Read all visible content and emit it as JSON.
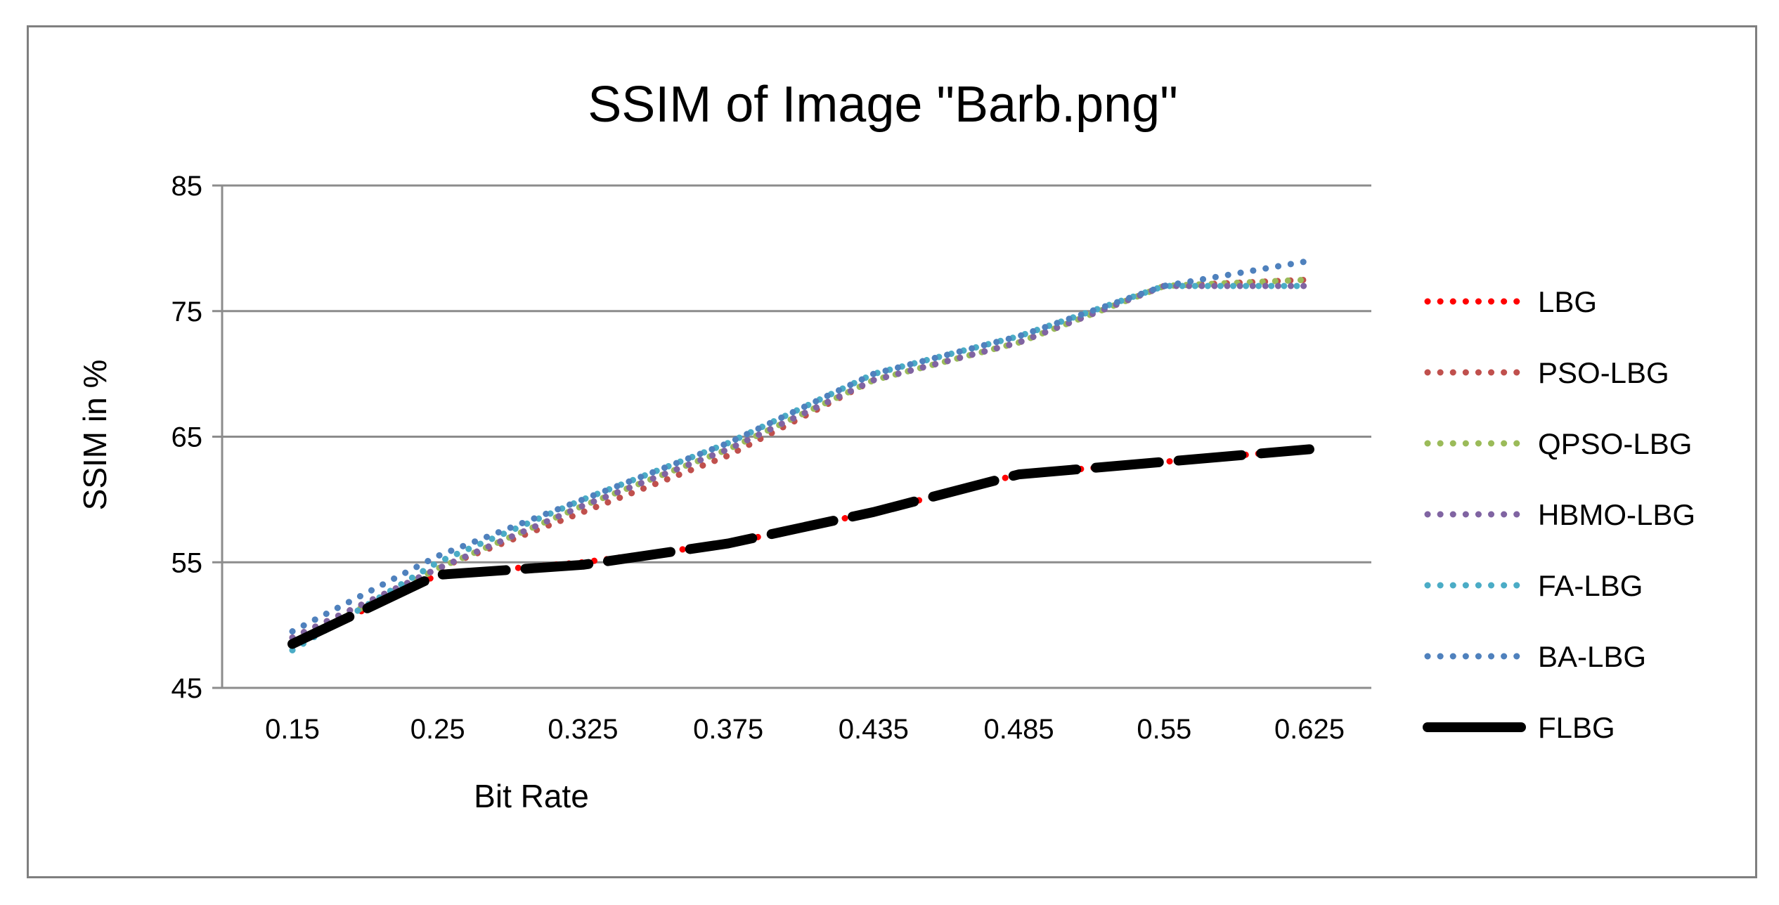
{
  "chart_data": {
    "type": "line",
    "title": "SSIM of Image \"Barb.png\"",
    "xlabel": "Bit Rate",
    "ylabel": "SSIM in %",
    "categories": [
      "0.15",
      "0.25",
      "0.325",
      "0.375",
      "0.435",
      "0.485",
      "0.55",
      "0.625"
    ],
    "ylim": [
      45,
      85
    ],
    "yticks": [
      "45",
      "55",
      "65",
      "75",
      "85"
    ],
    "grid": "horizontal",
    "legend_position": "right",
    "series": [
      {
        "name": "LBG",
        "color": "#ff0000",
        "style": "dotted",
        "values": [
          48.5,
          54,
          55,
          56.5,
          59,
          62,
          63,
          64
        ]
      },
      {
        "name": "PSO-LBG",
        "color": "#c0504d",
        "style": "dotted",
        "values": [
          49,
          54.5,
          59,
          63.5,
          69.5,
          72.5,
          77,
          77.5
        ]
      },
      {
        "name": "QPSO-LBG",
        "color": "#9bbb59",
        "style": "dotted",
        "values": [
          48.5,
          54.5,
          59.5,
          64,
          69.5,
          72.5,
          77,
          77.5
        ]
      },
      {
        "name": "HBMO-LBG",
        "color": "#8064a2",
        "style": "dotted",
        "values": [
          49,
          54.5,
          59.5,
          64,
          69.5,
          72.5,
          77,
          77
        ]
      },
      {
        "name": "FA-LBG",
        "color": "#4bacc6",
        "style": "dotted",
        "values": [
          48,
          55,
          60,
          64.5,
          70,
          73,
          77,
          77
        ]
      },
      {
        "name": "BA-LBG",
        "color": "#4f81bd",
        "style": "dotted",
        "values": [
          49.5,
          55.5,
          60,
          64.5,
          70,
          73,
          77,
          79
        ]
      },
      {
        "name": "FLBG",
        "color": "#000000",
        "style": "dashed-thick",
        "values": [
          48.5,
          54,
          54.8,
          56.5,
          59,
          62,
          63,
          64
        ]
      }
    ]
  }
}
